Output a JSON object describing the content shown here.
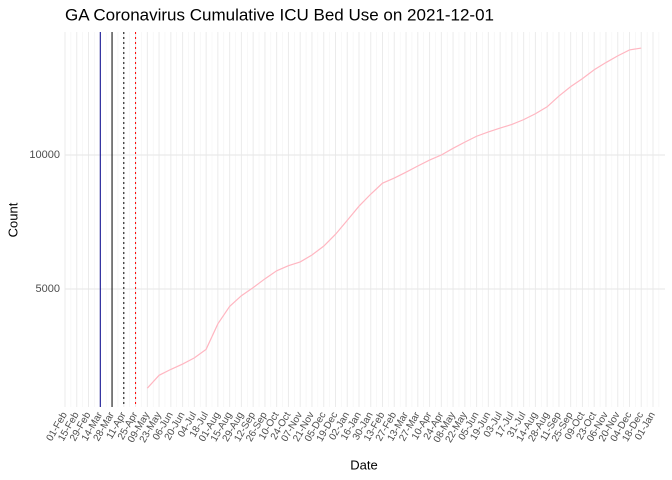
{
  "chart_data": {
    "type": "line",
    "title": "GA Coronavirus Cumulative ICU Bed Use on 2021-12-01",
    "x_label": "Date",
    "y_label": "Count",
    "categories": [
      "01-Feb",
      "15-Feb",
      "29-Feb",
      "14-Mar",
      "28-Mar",
      "11-Apr",
      "25-Apr",
      "09-May",
      "23-May",
      "06-Jun",
      "20-Jun",
      "04-Jul",
      "18-Jul",
      "01-Aug",
      "15-Aug",
      "29-Aug",
      "12-Sep",
      "26-Sep",
      "10-Oct",
      "24-Oct",
      "07-Nov",
      "21-Nov",
      "05-Dec",
      "19-Dec",
      "02-Jan",
      "16-Jan",
      "30-Jan",
      "13-Feb",
      "27-Feb",
      "13-Mar",
      "27-Mar",
      "10-Apr",
      "24-Apr",
      "08-May",
      "22-May",
      "05-Jun",
      "19-Jun",
      "03-Jul",
      "17-Jul",
      "31-Jul",
      "14-Aug",
      "28-Aug",
      "11-Sep",
      "25-Sep",
      "09-Oct",
      "23-Oct",
      "06-Nov",
      "20-Nov",
      "04-Dec",
      "18-Dec",
      "01-Jan"
    ],
    "values": [
      null,
      null,
      null,
      null,
      null,
      null,
      null,
      1300,
      1780,
      2000,
      2200,
      2430,
      2750,
      3700,
      4350,
      4750,
      5050,
      5380,
      5680,
      5870,
      6010,
      6270,
      6600,
      7040,
      7560,
      8090,
      8540,
      8950,
      9140,
      9360,
      9590,
      9810,
      10000,
      10250,
      10480,
      10700,
      10860,
      11007,
      11140,
      11320,
      11540,
      11800,
      12200,
      12550,
      12850,
      13180,
      13450,
      13700,
      13920,
      13990,
      null
    ],
    "color": "#ffb6c1",
    "ylim": [
      597,
      14590
    ],
    "yticks": [
      5000,
      10000
    ],
    "grid": true,
    "vlines": [
      {
        "x": "14-Mar",
        "color": "#00008b",
        "dashed": false
      },
      {
        "x": "28-Mar",
        "color": "#000000",
        "dashed": false
      },
      {
        "x": "11-Apr",
        "color": "#000000",
        "dashed": true
      },
      {
        "x": "25-Apr",
        "color": "#ff0000",
        "dashed": true
      }
    ]
  }
}
